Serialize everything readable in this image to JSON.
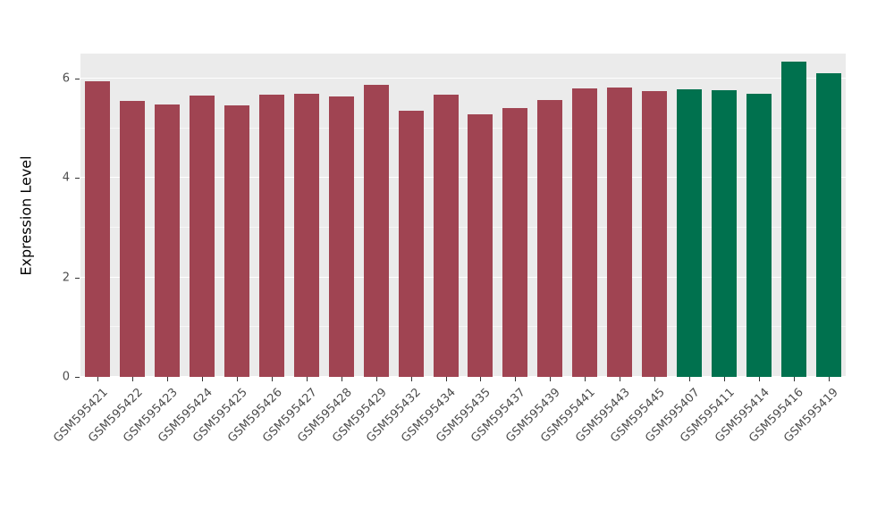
{
  "chart_data": {
    "type": "bar",
    "title": "",
    "xlabel": "",
    "ylabel": "Expression Level",
    "ylim": [
      0,
      6.5
    ],
    "yticks": [
      0,
      2,
      4,
      6
    ],
    "minor_gridlines": [
      1,
      3,
      5
    ],
    "grid": "on",
    "legend_position": "none",
    "panel_background": "#EBEBEB",
    "grid_color": "#FFFFFF",
    "tick_label_color": "#4D4D4D",
    "categories": [
      "GSM595421",
      "GSM595422",
      "GSM595423",
      "GSM595424",
      "GSM595425",
      "GSM595426",
      "GSM595427",
      "GSM595428",
      "GSM595429",
      "GSM595432",
      "GSM595434",
      "GSM595435",
      "GSM595437",
      "GSM595439",
      "GSM595441",
      "GSM595443",
      "GSM595445",
      "GSM595407",
      "GSM595411",
      "GSM595414",
      "GSM595416",
      "GSM595419"
    ],
    "values": [
      5.95,
      5.55,
      5.47,
      5.65,
      5.45,
      5.67,
      5.7,
      5.63,
      5.88,
      5.35,
      5.67,
      5.28,
      5.4,
      5.57,
      5.8,
      5.82,
      5.75,
      5.78,
      5.77,
      5.7,
      6.33,
      6.1
    ],
    "groups": [
      "group1",
      "group1",
      "group1",
      "group1",
      "group1",
      "group1",
      "group1",
      "group1",
      "group1",
      "group1",
      "group1",
      "group1",
      "group1",
      "group1",
      "group1",
      "group1",
      "group1",
      "group2",
      "group2",
      "group2",
      "group2",
      "group2"
    ],
    "group_colors": {
      "group1": "#A04452",
      "group2": "#00714E"
    }
  }
}
